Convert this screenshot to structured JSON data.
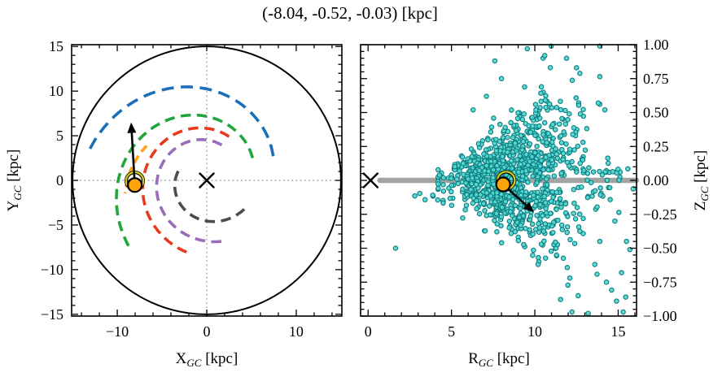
{
  "title": "(-8.04, -0.52, -0.03) [kpc]",
  "colors": {
    "background": "#ffffff",
    "frame": "#000000",
    "tick": "#000000",
    "crosshair": "#8a8a8a",
    "boundary_circle": "#000000",
    "midplane_line": "#a3a3a3",
    "scatter_fill": "#55d8d2",
    "scatter_edge": "#0d7d80",
    "sun_fill": "#ffa408",
    "sun_edge": "#000000",
    "ring": "#d2c71c",
    "arrow": "#000000",
    "center_x": "#000000"
  },
  "chart_data": [
    {
      "id": "xy",
      "type": "line",
      "xlabel": {
        "base": "X",
        "sub": "GC",
        "unit": "[kpc]"
      },
      "ylabel": {
        "base": "Y",
        "sub": "GC",
        "unit": "[kpc]"
      },
      "xlim": [
        -15.1,
        15.1
      ],
      "ylim": [
        -15.2,
        15.2
      ],
      "grid": false,
      "xticks": [
        {
          "v": -10,
          "label": "−10"
        },
        {
          "v": 0,
          "label": "0"
        },
        {
          "v": 10,
          "label": "10"
        }
      ],
      "yticks": [
        {
          "v": 15,
          "label": "15"
        },
        {
          "v": 10,
          "label": "10"
        },
        {
          "v": 5,
          "label": "5"
        },
        {
          "v": 0,
          "label": "0"
        },
        {
          "v": -5,
          "label": "−5"
        },
        {
          "v": -10,
          "label": "−10"
        },
        {
          "v": -15,
          "label": "−15"
        }
      ],
      "x_minor_step": 2,
      "y_minor_step": 1,
      "crosshair": {
        "x": 0,
        "y": 0
      },
      "boundary_circle_radius": 15,
      "spiral_arms": [
        {
          "name": "arm-gray",
          "color": "#4d4d4d",
          "theta_start": 162,
          "theta_end": 327,
          "r_start": 3.35,
          "b": 0.163,
          "dash": [
            12.5,
            7.5
          ]
        },
        {
          "name": "arm-purple",
          "color": "#9a6dbb",
          "theta_start": 67,
          "theta_end": 285,
          "r_start": 4.3,
          "b": 0.13,
          "dash": [
            12.5,
            7.5
          ]
        },
        {
          "name": "arm-red",
          "color": "#e8391d",
          "theta_start": 63,
          "theta_end": 256,
          "r_start": 5.5,
          "b": 0.125,
          "dash": [
            12.5,
            7.5
          ]
        },
        {
          "name": "arm-green",
          "color": "#21a63c",
          "theta_start": 26,
          "theta_end": 220,
          "r_start": 5.7,
          "b": 0.205,
          "dash": [
            12.5,
            7.5
          ]
        },
        {
          "name": "arm-blue",
          "color": "#1a6fba",
          "theta_start": 20,
          "theta_end": 166,
          "r_start": 7.9,
          "b": 0.2125,
          "dash": [
            15,
            8.5
          ]
        },
        {
          "name": "arm-orange",
          "color": "#ffa417",
          "theta_start": 150,
          "theta_end": 189,
          "r_start": 7.75,
          "b": 0.256,
          "dash": [
            10,
            6
          ]
        }
      ],
      "sun": {
        "x": -8.04,
        "y": -0.52
      },
      "ring": {
        "x": -8.05,
        "y": -0.05
      },
      "arrow_tip": {
        "x": -8.45,
        "y": 6.5
      },
      "center_marker": {
        "x": 0,
        "y": 0
      }
    },
    {
      "id": "rz",
      "type": "scatter",
      "xlabel": {
        "base": "R",
        "sub": "GC",
        "unit": "[kpc]"
      },
      "ylabel": {
        "base": "Z",
        "sub": "GC",
        "unit": "[kpc]"
      },
      "xlim": [
        -0.45,
        16.1
      ],
      "ylim": [
        -1.0,
        1.0
      ],
      "grid": false,
      "xticks": [
        {
          "v": 0,
          "label": "0"
        },
        {
          "v": 5,
          "label": "5"
        },
        {
          "v": 10,
          "label": "10"
        },
        {
          "v": 15,
          "label": "15"
        }
      ],
      "yticks": [
        {
          "v": 1.0,
          "label": "1.00"
        },
        {
          "v": 0.75,
          "label": "0.75"
        },
        {
          "v": 0.5,
          "label": "0.50"
        },
        {
          "v": 0.25,
          "label": "0.25"
        },
        {
          "v": 0.0,
          "label": "0.00"
        },
        {
          "v": -0.25,
          "label": "−0.25"
        },
        {
          "v": -0.5,
          "label": "−0.50"
        },
        {
          "v": -0.75,
          "label": "−0.75"
        },
        {
          "v": -1.0,
          "label": "−1.00"
        }
      ],
      "x_minor_step": 1,
      "y_minor_step": 0.05,
      "midplane_line": {
        "z": 0,
        "r_start": 0.7,
        "r_end": 16.1
      },
      "center_marker": {
        "r": 0.15,
        "z": 0
      },
      "sun": {
        "r": 8.1,
        "z": -0.03
      },
      "ring": {
        "r": 8.28,
        "z": 0.0
      },
      "arrow_tip": {
        "r": 9.95,
        "z": -0.235
      },
      "scatter": {
        "seed": 1337,
        "clusters": [
          {
            "n": 680,
            "r_mean": 8.35,
            "r_sd": 1.8,
            "r_min": 4.2,
            "r_max": 12.9,
            "r_ref": 4,
            "z_base": -0.02,
            "z_sd0": 0.045,
            "z_slope": 0.028,
            "z_sign": 0,
            "z_min": -0.78,
            "z_max": 0.82
          },
          {
            "n": 250,
            "r_mean": 9.6,
            "r_sd": 2.0,
            "r_min": 5.2,
            "r_max": 13.9,
            "r_ref": 5,
            "z_base": 0.06,
            "z_sd0": 0.04,
            "z_slope": 0.05,
            "z_sign": 1,
            "z_min": 0.02,
            "z_max": 0.99
          },
          {
            "n": 105,
            "r_mean": 10.4,
            "r_sd": 2.1,
            "r_min": 5.8,
            "r_max": 15.7,
            "r_ref": 5,
            "z_base": -0.08,
            "z_sd0": 0.035,
            "z_slope": 0.042,
            "z_sign": -1,
            "z_min": -0.99,
            "z_max": -0.02
          },
          {
            "n": 40,
            "r_mean": 13.8,
            "r_sd": 1.4,
            "r_min": 11.6,
            "r_max": 15.9,
            "r_ref": 0,
            "z_base": 0.0,
            "z_sd0": 0.07,
            "z_slope": 0,
            "z_sign": 0,
            "z_min": -0.3,
            "z_max": 0.3
          },
          {
            "n": 10,
            "r_mean": 3.4,
            "r_sd": 0.8,
            "r_min": 2.1,
            "r_max": 4.5,
            "r_ref": 0,
            "z_base": -0.08,
            "z_sd0": 0.09,
            "z_slope": 0,
            "z_sign": 0,
            "z_min": -0.3,
            "z_max": 0.12
          }
        ],
        "extra_points": [
          [
            1.65,
            -0.5
          ],
          [
            15.3,
            -0.97
          ],
          [
            14.9,
            -0.89
          ],
          [
            15.45,
            -0.86
          ],
          [
            13.2,
            -0.98
          ],
          [
            12.6,
            -0.85
          ],
          [
            14.3,
            -0.75
          ],
          [
            15.2,
            -0.68
          ],
          [
            13.6,
            -0.62
          ],
          [
            12.1,
            -0.72
          ],
          [
            9.55,
            0.97
          ],
          [
            10.6,
            0.92
          ],
          [
            11.9,
            0.9
          ],
          [
            12.5,
            0.83
          ],
          [
            8.0,
            0.75
          ],
          [
            13.8,
            0.57
          ],
          [
            14.2,
            0.52
          ],
          [
            7.1,
            0.62
          ],
          [
            6.3,
            0.52
          ],
          [
            10.2,
            -0.62
          ],
          [
            11.3,
            -0.55
          ],
          [
            14.8,
            -0.3
          ],
          [
            15.5,
            -0.45
          ],
          [
            13.9,
            -0.45
          ],
          [
            7.6,
            0.88
          ]
        ]
      }
    }
  ]
}
